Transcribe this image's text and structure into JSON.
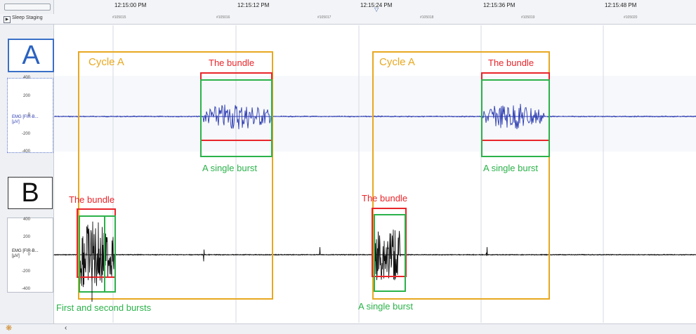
{
  "header": {
    "times": [
      "12:15:00 PM",
      "12:15:12 PM",
      "12:15:24 PM",
      "12:15:36 PM",
      "12:15:48 PM"
    ],
    "epochs": [
      "#105015",
      "#105016",
      "#105017",
      "#105018",
      "#105019",
      "#105020"
    ],
    "sleep_staging": "Sleep Staging"
  },
  "panels": {
    "a": {
      "letter": "A",
      "channel": "EMG [FIR-B...",
      "unit": "[µV]",
      "ticks": [
        "400",
        "200",
        "0",
        "-200",
        "-400"
      ]
    },
    "b": {
      "letter": "B",
      "channel": "EMG [FIR-B...",
      "unit": "[µV]",
      "ticks": [
        "400",
        "200",
        "0",
        "-200",
        "-400"
      ]
    }
  },
  "annotations": {
    "cycle_left": "Cycle A",
    "cycle_right": "Cycle A",
    "bundle_a_left": "The bundle",
    "bundle_a_right": "The bundle",
    "burst_a_left": "A single burst",
    "burst_a_right": "A single burst",
    "bundle_b_left": "The bundle",
    "bundle_b_right": "The bundle",
    "burst_b_left": "First and second bursts",
    "burst_b_right": "A single burst"
  },
  "colors": {
    "cycle": "#e8a820",
    "bundle": "#e8252a",
    "burst": "#2bb24a",
    "trace_a": "#2a3ab0",
    "trace_b": "#111111"
  },
  "chart_data": {
    "type": "line",
    "title": "",
    "xlabel": "",
    "ylabel": "[µV]",
    "x_ticks": [
      "12:15:00 PM",
      "12:15:12 PM",
      "12:15:24 PM",
      "12:15:36 PM",
      "12:15:48 PM"
    ],
    "ylim": [
      -400,
      400
    ],
    "y_ticks": [
      400,
      200,
      0,
      -200,
      -400
    ],
    "series": [
      {
        "name": "EMG [FIR-B... [µV]",
        "panel": "A",
        "bursts": [
          {
            "amplitude": 150
          },
          {
            "amplitude": 150
          }
        ]
      },
      {
        "name": "EMG [FIR-B... [µV]",
        "panel": "B",
        "bursts": [
          {
            "amplitude": 380
          },
          {
            "amplitude": 260
          },
          {
            "amplitude": 300
          }
        ]
      }
    ]
  }
}
